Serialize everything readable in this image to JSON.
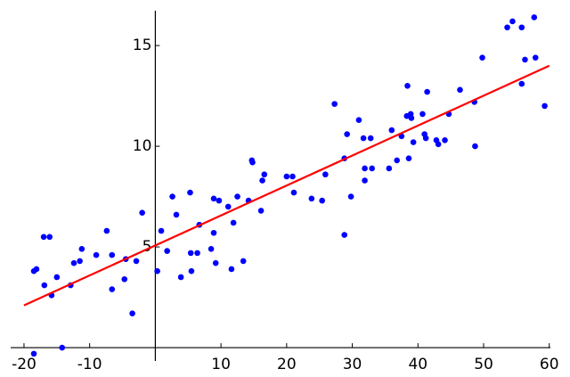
{
  "chart_data": {
    "type": "scatter",
    "xlim": [
      -22.3,
      61.8
    ],
    "ylim": [
      -0.66,
      16.73
    ],
    "xticks": [
      -20,
      -10,
      10,
      20,
      30,
      40,
      50,
      60
    ],
    "yticks": [
      5,
      10,
      15
    ],
    "series": [
      {
        "type": "scatter",
        "color": "#0000ff",
        "x": [
          -18.5,
          -18.1,
          -17.0,
          -16.1,
          -16.9,
          -15.8,
          -15.0,
          -14.2,
          -18.5,
          -12.9,
          -12.4,
          -11.5,
          -11.2,
          -9.0,
          -7.4,
          -6.6,
          -6.6,
          -4.7,
          -4.5,
          -3.5,
          -2.9,
          -2.0,
          0.3,
          0.9,
          1.8,
          2.6,
          3.2,
          3.9,
          5.3,
          5.4,
          5.5,
          6.4,
          6.7,
          8.5,
          8.9,
          8.9,
          9.2,
          9.7,
          11.1,
          11.6,
          11.9,
          12.5,
          13.4,
          14.2,
          14.7,
          14.8,
          16.1,
          16.3,
          16.6,
          20.0,
          20.9,
          21.1,
          23.8,
          25.4,
          25.9,
          27.3,
          28.8,
          28.8,
          29.2,
          29.8,
          31.0,
          31.7,
          31.9,
          31.9,
          32.8,
          33.0,
          35.6,
          36.0,
          36.8,
          37.5,
          38.3,
          38.4,
          38.6,
          38.9,
          39.0,
          39.3,
          40.7,
          41.0,
          41.2,
          41.4,
          42.8,
          43.1,
          44.1,
          44.7,
          46.4,
          48.6,
          48.7,
          49.8,
          53.6,
          54.4,
          55.8,
          55.8,
          56.3,
          57.7,
          57.9,
          59.3
        ],
        "values": [
          3.8,
          3.9,
          5.5,
          5.5,
          3.1,
          2.6,
          3.5,
          0.0,
          -0.3,
          3.1,
          4.2,
          4.3,
          4.9,
          4.6,
          5.8,
          4.6,
          2.9,
          3.4,
          4.4,
          1.7,
          4.3,
          6.7,
          3.8,
          5.8,
          4.8,
          7.5,
          6.6,
          3.5,
          7.7,
          4.7,
          3.8,
          4.7,
          6.1,
          4.9,
          7.4,
          5.7,
          4.2,
          7.3,
          7.0,
          3.9,
          6.2,
          7.5,
          4.3,
          7.3,
          9.3,
          9.2,
          6.8,
          8.3,
          8.6,
          8.5,
          8.5,
          7.7,
          7.4,
          7.3,
          8.6,
          12.1,
          5.6,
          9.4,
          10.6,
          7.5,
          11.3,
          10.4,
          8.9,
          8.3,
          10.4,
          8.9,
          8.9,
          10.8,
          9.3,
          10.5,
          11.5,
          13.0,
          9.4,
          11.6,
          11.4,
          10.2,
          11.6,
          10.6,
          10.4,
          12.7,
          10.3,
          10.1,
          10.3,
          11.6,
          12.8,
          12.2,
          10.0,
          14.4,
          15.9,
          16.2,
          13.1,
          15.9,
          14.3,
          16.4,
          14.4,
          12.0
        ]
      },
      {
        "type": "line",
        "color": "#ff0000",
        "x": [
          -20,
          60
        ],
        "values": [
          2.1,
          14.0
        ]
      }
    ]
  }
}
